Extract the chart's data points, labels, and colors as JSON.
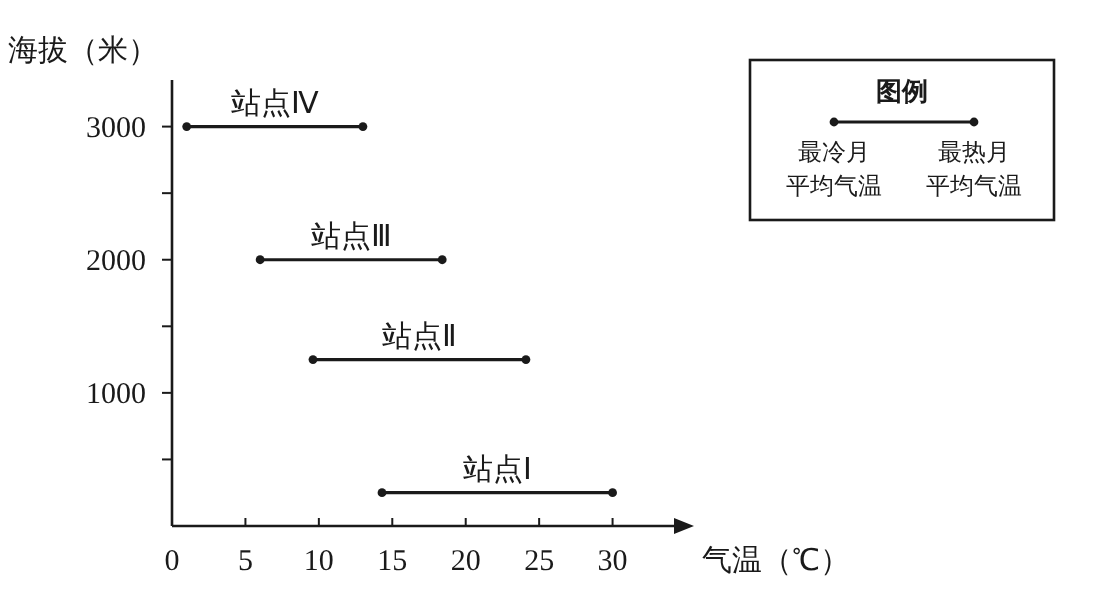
{
  "chart_data": {
    "type": "line",
    "xlabel": "气温（℃）",
    "ylabel": "海拔（米）",
    "legend_title": "图例",
    "marker": "circle",
    "line_style": "solid",
    "xlim": [
      0,
      35
    ],
    "ylim": [
      0,
      3350
    ],
    "xticks": [
      0,
      5,
      10,
      15,
      20,
      25,
      30
    ],
    "yticks": [
      {
        "value": 500,
        "label": null
      },
      1000,
      {
        "value": 1500,
        "label": null
      },
      2000,
      {
        "value": 2500,
        "label": null
      },
      3000
    ],
    "annotations": [
      "最冷月平均气温",
      "最热月平均气温"
    ],
    "series": [
      {
        "name": "站点Ⅳ",
        "color": "#1a1a1a",
        "x": [
          1,
          13
        ],
        "values": [
          3000,
          3000
        ]
      },
      {
        "name": "站点Ⅲ",
        "color": "#1a1a1a",
        "x": [
          6,
          18.4
        ],
        "values": [
          2000,
          2000
        ]
      },
      {
        "name": "站点Ⅱ",
        "color": "#1a1a1a",
        "x": [
          9.6,
          24.1
        ],
        "values": [
          1250,
          1250
        ]
      },
      {
        "name": "站点Ⅰ",
        "color": "#1a1a1a",
        "x": [
          14.3,
          30
        ],
        "values": [
          250,
          250
        ]
      }
    ]
  }
}
